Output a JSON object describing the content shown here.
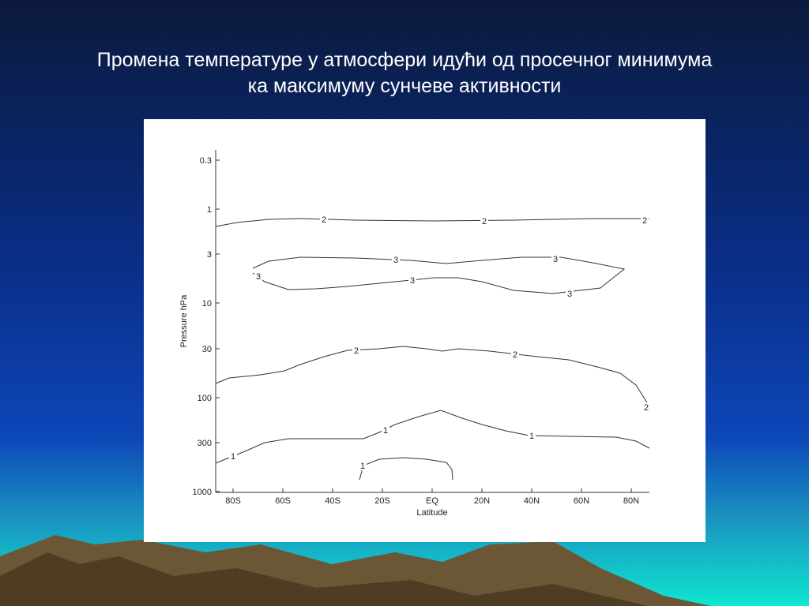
{
  "slide": {
    "title_lines": [
      "Промена температуре у атмосфери идући од просечног минимума",
      "ка максимуму сунчеве активности"
    ]
  },
  "figure": {
    "y_axis_label": "Pressure hPa",
    "x_axis_label": "Latitude",
    "yticks": [
      "0.3",
      "1",
      "3",
      "10",
      "30",
      "100",
      "300",
      "1000"
    ],
    "xticks": [
      "80S",
      "60S",
      "40S",
      "20S",
      "EQ",
      "20N",
      "40N",
      "60N",
      "80N"
    ],
    "contour_labels": [
      2,
      2,
      2,
      3,
      3,
      3,
      3,
      3,
      2,
      2,
      2,
      1,
      1,
      1,
      1
    ]
  }
}
